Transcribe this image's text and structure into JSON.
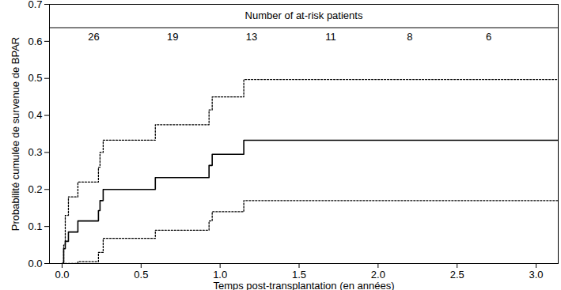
{
  "chart_data": {
    "type": "line",
    "x_label": "Temps post-transplantation (en années)",
    "y_label": "Probabilité cumulée de survenue de BPAR",
    "xlim": [
      -0.08,
      3.14
    ],
    "ylim": [
      0,
      0.7
    ],
    "xticks": [
      {
        "value": 0,
        "label": "0.0"
      },
      {
        "value": 0.5,
        "label": "0.5"
      },
      {
        "value": 1,
        "label": "1.0"
      },
      {
        "value": 1.5,
        "label": "1.5"
      },
      {
        "value": 2,
        "label": "2.0"
      },
      {
        "value": 2.5,
        "label": "2.5"
      },
      {
        "value": 3,
        "label": "3.0"
      }
    ],
    "yticks": [
      {
        "value": 0,
        "label": "0.0"
      },
      {
        "value": 0.1,
        "label": "0.1"
      },
      {
        "value": 0.2,
        "label": "0.2"
      },
      {
        "value": 0.3,
        "label": "0.3"
      },
      {
        "value": 0.4,
        "label": "0.4"
      },
      {
        "value": 0.5,
        "label": "0.5"
      },
      {
        "value": 0.6,
        "label": "0.6"
      },
      {
        "value": 0.7,
        "label": "0.7"
      }
    ],
    "grid": false,
    "series": [
      {
        "color": "#000000",
        "line_style": "solid",
        "x": [
          0,
          0.01,
          0.02,
          0.04,
          0.1,
          0.23,
          0.24,
          0.26,
          0.59,
          0.93,
          0.95,
          1.15,
          3.14
        ],
        "values": [
          0,
          0.04,
          0.06,
          0.085,
          0.115,
          0.143,
          0.17,
          0.2,
          0.232,
          0.265,
          0.295,
          0.333,
          0.333
        ]
      },
      {
        "color": "#000000",
        "line_style": "dotted",
        "x": [
          0,
          0.01,
          0.02,
          0.04,
          0.1,
          0.23,
          0.24,
          0.26,
          0.59,
          0.93,
          0.95,
          1.15,
          3.14
        ],
        "values": [
          0,
          0.05,
          0.13,
          0.18,
          0.22,
          0.26,
          0.3,
          0.333,
          0.375,
          0.415,
          0.45,
          0.497,
          0.497
        ]
      },
      {
        "color": "#000000",
        "line_style": "dotted",
        "x": [
          0,
          0.1,
          0.23,
          0.26,
          0.59,
          0.93,
          0.95,
          1.15,
          3.14
        ],
        "values": [
          0,
          0.005,
          0.03,
          0.068,
          0.09,
          0.115,
          0.14,
          0.17,
          0.17
        ]
      }
    ],
    "at_risk": {
      "title": "Number of at-risk patients",
      "x": [
        0.2,
        0.7,
        1.2,
        1.7,
        2.2,
        2.7
      ],
      "counts": [
        26,
        19,
        13,
        11,
        8,
        6
      ]
    }
  }
}
